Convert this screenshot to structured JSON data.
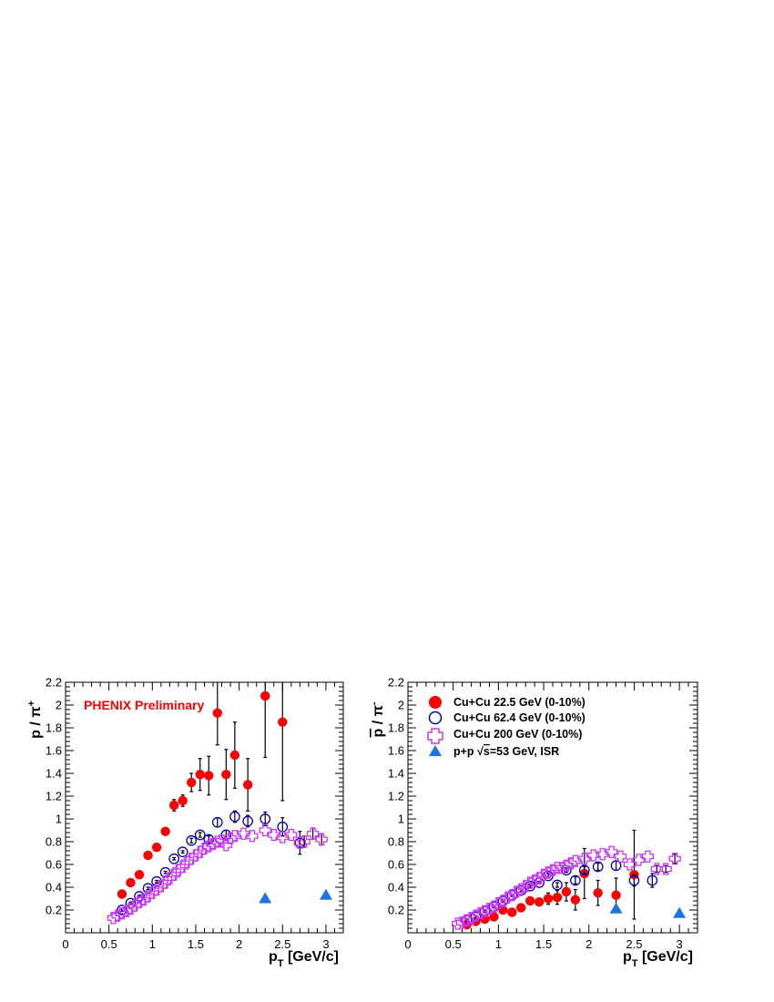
{
  "colors": {
    "cucu_22": "#ff0000",
    "cucu_62": "#0000cc",
    "cucu_200": "#cc33ff",
    "pp_isr": "#1a73e8",
    "annotation": "#ff0000"
  },
  "chart_data": [
    {
      "type": "scatter",
      "ylabel": "p / π⁺",
      "xlabel": "p_T [GeV/c]",
      "xlim": [
        0,
        3.2
      ],
      "ylim": [
        0,
        2.2
      ],
      "xticks": [
        "0",
        "0.5",
        "1",
        "1.5",
        "2",
        "2.5",
        "3"
      ],
      "yticks": [
        "0.2",
        "0.4",
        "0.6",
        "0.8",
        "1",
        "1.2",
        "1.4",
        "1.6",
        "1.8",
        "2",
        "2.2"
      ],
      "annotation": "PHENIX Preliminary",
      "series": [
        {
          "key": "cucu_22",
          "marker": "filled-circle",
          "points": [
            {
              "x": 0.65,
              "y": 0.34,
              "err": 0.02
            },
            {
              "x": 0.75,
              "y": 0.44,
              "err": 0.02
            },
            {
              "x": 0.85,
              "y": 0.51,
              "err": 0.02
            },
            {
              "x": 0.95,
              "y": 0.68,
              "err": 0.02
            },
            {
              "x": 1.05,
              "y": 0.75,
              "err": 0.02
            },
            {
              "x": 1.15,
              "y": 0.89,
              "err": 0.02
            },
            {
              "x": 1.25,
              "y": 1.12,
              "err": 0.05
            },
            {
              "x": 1.35,
              "y": 1.16,
              "err": 0.05
            },
            {
              "x": 1.45,
              "y": 1.32,
              "err": 0.08
            },
            {
              "x": 1.55,
              "y": 1.39,
              "err": 0.14
            },
            {
              "x": 1.65,
              "y": 1.38,
              "err": 0.17
            },
            {
              "x": 1.75,
              "y": 1.93,
              "err": 0.28
            },
            {
              "x": 1.85,
              "y": 1.39,
              "err": 0.22
            },
            {
              "x": 1.95,
              "y": 1.56,
              "err": 0.29
            },
            {
              "x": 2.1,
              "y": 1.3,
              "err": 0.23
            },
            {
              "x": 2.3,
              "y": 2.08,
              "err": 0.54
            },
            {
              "x": 2.5,
              "y": 1.85,
              "err": 0.69
            }
          ]
        },
        {
          "key": "cucu_62",
          "marker": "open-circle",
          "points": [
            {
              "x": 0.65,
              "y": 0.2,
              "err": 0.01
            },
            {
              "x": 0.75,
              "y": 0.26,
              "err": 0.01
            },
            {
              "x": 0.85,
              "y": 0.32,
              "err": 0.01
            },
            {
              "x": 0.95,
              "y": 0.39,
              "err": 0.01
            },
            {
              "x": 1.05,
              "y": 0.45,
              "err": 0.01
            },
            {
              "x": 1.15,
              "y": 0.53,
              "err": 0.01
            },
            {
              "x": 1.25,
              "y": 0.65,
              "err": 0.01
            },
            {
              "x": 1.35,
              "y": 0.71,
              "err": 0.01
            },
            {
              "x": 1.45,
              "y": 0.81,
              "err": 0.02
            },
            {
              "x": 1.55,
              "y": 0.86,
              "err": 0.02
            },
            {
              "x": 1.65,
              "y": 0.82,
              "err": 0.03
            },
            {
              "x": 1.75,
              "y": 0.97,
              "err": 0.04
            },
            {
              "x": 1.85,
              "y": 0.86,
              "err": 0.04
            },
            {
              "x": 1.95,
              "y": 1.02,
              "err": 0.05
            },
            {
              "x": 2.1,
              "y": 0.98,
              "err": 0.05
            },
            {
              "x": 2.3,
              "y": 1.0,
              "err": 0.06
            },
            {
              "x": 2.5,
              "y": 0.93,
              "err": 0.08
            },
            {
              "x": 2.7,
              "y": 0.79,
              "err": 0.1
            }
          ]
        },
        {
          "key": "cucu_200",
          "marker": "open-cross",
          "points": [
            {
              "x": 0.55,
              "y": 0.13
            },
            {
              "x": 0.6,
              "y": 0.15
            },
            {
              "x": 0.65,
              "y": 0.17
            },
            {
              "x": 0.7,
              "y": 0.19
            },
            {
              "x": 0.75,
              "y": 0.21
            },
            {
              "x": 0.8,
              "y": 0.24
            },
            {
              "x": 0.85,
              "y": 0.27
            },
            {
              "x": 0.9,
              "y": 0.29
            },
            {
              "x": 0.95,
              "y": 0.32
            },
            {
              "x": 1.0,
              "y": 0.35
            },
            {
              "x": 1.05,
              "y": 0.38
            },
            {
              "x": 1.1,
              "y": 0.41
            },
            {
              "x": 1.15,
              "y": 0.44
            },
            {
              "x": 1.2,
              "y": 0.48
            },
            {
              "x": 1.25,
              "y": 0.51
            },
            {
              "x": 1.3,
              "y": 0.55
            },
            {
              "x": 1.35,
              "y": 0.58
            },
            {
              "x": 1.4,
              "y": 0.62
            },
            {
              "x": 1.45,
              "y": 0.65
            },
            {
              "x": 1.5,
              "y": 0.68
            },
            {
              "x": 1.55,
              "y": 0.71
            },
            {
              "x": 1.6,
              "y": 0.74
            },
            {
              "x": 1.65,
              "y": 0.76
            },
            {
              "x": 1.7,
              "y": 0.78
            },
            {
              "x": 1.75,
              "y": 0.8
            },
            {
              "x": 1.8,
              "y": 0.81
            },
            {
              "x": 1.85,
              "y": 0.77
            },
            {
              "x": 1.9,
              "y": 0.83
            },
            {
              "x": 1.95,
              "y": 0.85
            },
            {
              "x": 2.05,
              "y": 0.87
            },
            {
              "x": 2.15,
              "y": 0.85
            },
            {
              "x": 2.3,
              "y": 0.9
            },
            {
              "x": 2.4,
              "y": 0.86
            },
            {
              "x": 2.5,
              "y": 0.84
            },
            {
              "x": 2.6,
              "y": 0.86
            },
            {
              "x": 2.7,
              "y": 0.79
            },
            {
              "x": 2.75,
              "y": 0.8,
              "err": 0.05
            },
            {
              "x": 2.85,
              "y": 0.87,
              "err": 0.05
            },
            {
              "x": 2.95,
              "y": 0.82,
              "err": 0.05
            }
          ]
        },
        {
          "key": "pp_isr",
          "marker": "filled-triangle",
          "points": [
            {
              "x": 2.3,
              "y": 0.3
            },
            {
              "x": 3.0,
              "y": 0.33
            }
          ]
        }
      ]
    },
    {
      "type": "scatter",
      "ylabel": "p̄ / π⁻",
      "xlabel": "p_T [GeV/c]",
      "xlim": [
        0,
        3.2
      ],
      "ylim": [
        0,
        2.2
      ],
      "xticks": [
        "0",
        "0.5",
        "1",
        "1.5",
        "2",
        "2.5",
        "3"
      ],
      "yticks": [
        "0.2",
        "0.4",
        "0.6",
        "0.8",
        "1",
        "1.2",
        "1.4",
        "1.6",
        "1.8",
        "2",
        "2.2"
      ],
      "legend": {
        "placement": "top-left",
        "entries": [
          {
            "key": "cucu_22",
            "marker": "filled-circle",
            "label": "Cu+Cu 22.5 GeV (0-10%)"
          },
          {
            "key": "cucu_62",
            "marker": "open-circle",
            "label": "Cu+Cu 62.4 GeV (0-10%)"
          },
          {
            "key": "cucu_200",
            "marker": "open-cross",
            "label": "Cu+Cu 200  GeV (0-10%)"
          },
          {
            "key": "pp_isr",
            "marker": "filled-triangle",
            "label_prefix": "p+p ",
            "label_sqrt": "√",
            "label_s": "s",
            "label_suffix": "=53 GeV, ISR"
          }
        ]
      },
      "series": [
        {
          "key": "cucu_22",
          "marker": "filled-circle",
          "points": [
            {
              "x": 0.65,
              "y": 0.07,
              "err": 0.01
            },
            {
              "x": 0.75,
              "y": 0.1,
              "err": 0.01
            },
            {
              "x": 0.85,
              "y": 0.12,
              "err": 0.01
            },
            {
              "x": 0.95,
              "y": 0.14,
              "err": 0.01
            },
            {
              "x": 1.05,
              "y": 0.2,
              "err": 0.01
            },
            {
              "x": 1.15,
              "y": 0.18,
              "err": 0.01
            },
            {
              "x": 1.25,
              "y": 0.22,
              "err": 0.02
            },
            {
              "x": 1.35,
              "y": 0.28,
              "err": 0.02
            },
            {
              "x": 1.45,
              "y": 0.27,
              "err": 0.03
            },
            {
              "x": 1.55,
              "y": 0.3,
              "err": 0.05
            },
            {
              "x": 1.65,
              "y": 0.31,
              "err": 0.06
            },
            {
              "x": 1.75,
              "y": 0.36,
              "err": 0.08
            },
            {
              "x": 1.85,
              "y": 0.29,
              "err": 0.09
            },
            {
              "x": 1.95,
              "y": 0.52,
              "err": 0.22
            },
            {
              "x": 2.1,
              "y": 0.35,
              "err": 0.11
            },
            {
              "x": 2.3,
              "y": 0.33,
              "err": 0.15
            },
            {
              "x": 2.5,
              "y": 0.51,
              "err": 0.39
            }
          ]
        },
        {
          "key": "cucu_62",
          "marker": "open-circle",
          "points": [
            {
              "x": 0.65,
              "y": 0.11,
              "err": 0.01
            },
            {
              "x": 0.75,
              "y": 0.14,
              "err": 0.01
            },
            {
              "x": 0.85,
              "y": 0.19,
              "err": 0.01
            },
            {
              "x": 0.95,
              "y": 0.23,
              "err": 0.01
            },
            {
              "x": 1.05,
              "y": 0.28,
              "err": 0.01
            },
            {
              "x": 1.15,
              "y": 0.33,
              "err": 0.01
            },
            {
              "x": 1.25,
              "y": 0.37,
              "err": 0.01
            },
            {
              "x": 1.35,
              "y": 0.41,
              "err": 0.01
            },
            {
              "x": 1.45,
              "y": 0.44,
              "err": 0.01
            },
            {
              "x": 1.55,
              "y": 0.5,
              "err": 0.02
            },
            {
              "x": 1.65,
              "y": 0.42,
              "err": 0.02
            },
            {
              "x": 1.75,
              "y": 0.55,
              "err": 0.02
            },
            {
              "x": 1.85,
              "y": 0.46,
              "err": 0.03
            },
            {
              "x": 1.95,
              "y": 0.55,
              "err": 0.03
            },
            {
              "x": 2.1,
              "y": 0.58,
              "err": 0.03
            },
            {
              "x": 2.3,
              "y": 0.59,
              "err": 0.04
            },
            {
              "x": 2.5,
              "y": 0.46,
              "err": 0.05
            },
            {
              "x": 2.7,
              "y": 0.46,
              "err": 0.06
            }
          ]
        },
        {
          "key": "cucu_200",
          "marker": "open-cross",
          "points": [
            {
              "x": 0.55,
              "y": 0.08
            },
            {
              "x": 0.6,
              "y": 0.09
            },
            {
              "x": 0.65,
              "y": 0.11
            },
            {
              "x": 0.7,
              "y": 0.13
            },
            {
              "x": 0.75,
              "y": 0.15
            },
            {
              "x": 0.8,
              "y": 0.17
            },
            {
              "x": 0.85,
              "y": 0.19
            },
            {
              "x": 0.9,
              "y": 0.21
            },
            {
              "x": 0.95,
              "y": 0.23
            },
            {
              "x": 1.0,
              "y": 0.26
            },
            {
              "x": 1.05,
              "y": 0.28
            },
            {
              "x": 1.1,
              "y": 0.31
            },
            {
              "x": 1.15,
              "y": 0.33
            },
            {
              "x": 1.2,
              "y": 0.36
            },
            {
              "x": 1.25,
              "y": 0.38
            },
            {
              "x": 1.3,
              "y": 0.41
            },
            {
              "x": 1.35,
              "y": 0.44
            },
            {
              "x": 1.4,
              "y": 0.46
            },
            {
              "x": 1.45,
              "y": 0.48
            },
            {
              "x": 1.5,
              "y": 0.51
            },
            {
              "x": 1.55,
              "y": 0.53
            },
            {
              "x": 1.6,
              "y": 0.55
            },
            {
              "x": 1.65,
              "y": 0.57
            },
            {
              "x": 1.7,
              "y": 0.57
            },
            {
              "x": 1.75,
              "y": 0.59
            },
            {
              "x": 1.8,
              "y": 0.61
            },
            {
              "x": 1.85,
              "y": 0.63
            },
            {
              "x": 1.95,
              "y": 0.65
            },
            {
              "x": 2.05,
              "y": 0.68
            },
            {
              "x": 2.15,
              "y": 0.69
            },
            {
              "x": 2.25,
              "y": 0.71
            },
            {
              "x": 2.35,
              "y": 0.67
            },
            {
              "x": 2.45,
              "y": 0.6
            },
            {
              "x": 2.55,
              "y": 0.64
            },
            {
              "x": 2.65,
              "y": 0.67
            },
            {
              "x": 2.75,
              "y": 0.56,
              "err": 0.03
            },
            {
              "x": 2.85,
              "y": 0.56,
              "err": 0.03
            },
            {
              "x": 2.95,
              "y": 0.65,
              "err": 0.04
            }
          ]
        },
        {
          "key": "pp_isr",
          "marker": "filled-triangle",
          "points": [
            {
              "x": 2.3,
              "y": 0.21
            },
            {
              "x": 3.0,
              "y": 0.17
            }
          ]
        }
      ]
    }
  ]
}
